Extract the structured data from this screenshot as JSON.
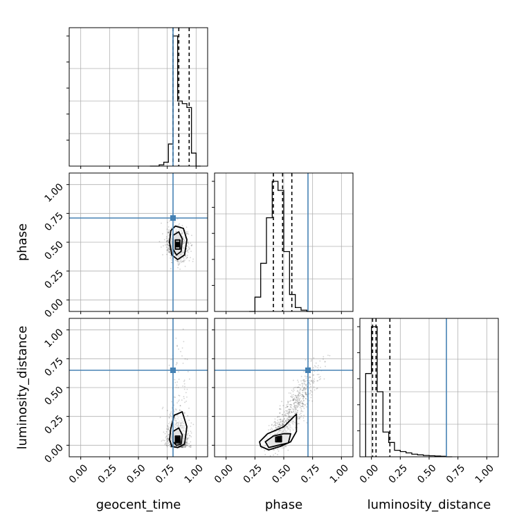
{
  "chart_data": {
    "type": "corner",
    "parameters": [
      "geocent_time",
      "phase",
      "luminosity_distance"
    ],
    "truths": {
      "geocent_time": 0.8,
      "phase": 0.71,
      "luminosity_distance": 0.65
    },
    "axis_range": [
      -0.1,
      1.1
    ],
    "tick_labels": [
      "0.00",
      "0.25",
      "0.50",
      "0.75",
      "1.00"
    ],
    "grid": true,
    "truth_color": "#4682b4",
    "hist_color": "#000000",
    "quantiles": {
      "geocent_time": [
        0.8,
        0.85,
        0.94
      ],
      "phase": [
        0.41,
        0.49,
        0.57
      ],
      "luminosity_distance": [
        0.01,
        0.04,
        0.16
      ]
    },
    "histograms": {
      "geocent_time": {
        "bin_edges": [
          0.6,
          0.64,
          0.68,
          0.72,
          0.76,
          0.8,
          0.84,
          0.88,
          0.92,
          0.96,
          1.0,
          1.04
        ],
        "counts": [
          0.0,
          0.0,
          0.01,
          0.03,
          0.17,
          1.0,
          0.5,
          0.48,
          0.45,
          0.1,
          0.0
        ]
      },
      "phase": {
        "bin_edges": [
          0.2,
          0.25,
          0.3,
          0.35,
          0.4,
          0.45,
          0.5,
          0.55,
          0.6,
          0.65,
          0.7,
          0.75
        ],
        "counts": [
          0.0,
          0.11,
          0.37,
          0.72,
          1.0,
          0.93,
          0.46,
          0.13,
          0.03,
          0.01,
          0.0
        ]
      },
      "luminosity_distance": {
        "bin_edges": [
          -0.05,
          0.0,
          0.05,
          0.1,
          0.15,
          0.2,
          0.25,
          0.3,
          0.35,
          0.4,
          0.45,
          0.5,
          0.55,
          0.6,
          0.65,
          0.7
        ],
        "counts": [
          0.64,
          1.0,
          0.5,
          0.19,
          0.11,
          0.05,
          0.04,
          0.03,
          0.02,
          0.015,
          0.01,
          0.008,
          0.006,
          0.004,
          0.0
        ]
      }
    },
    "joint_contours": [
      {
        "x": "geocent_time",
        "y": "phase",
        "peak": [
          0.84,
          0.48
        ],
        "contours": [
          [
            [
              0.78,
              0.6
            ],
            [
              0.82,
              0.64
            ],
            [
              0.89,
              0.62
            ],
            [
              0.92,
              0.52
            ],
            [
              0.9,
              0.39
            ],
            [
              0.84,
              0.35
            ],
            [
              0.79,
              0.39
            ],
            [
              0.77,
              0.5
            ]
          ],
          [
            [
              0.8,
              0.56
            ],
            [
              0.85,
              0.59
            ],
            [
              0.88,
              0.53
            ],
            [
              0.87,
              0.42
            ],
            [
              0.83,
              0.39
            ],
            [
              0.8,
              0.44
            ]
          ],
          [
            [
              0.82,
              0.52
            ],
            [
              0.86,
              0.52
            ],
            [
              0.86,
              0.44
            ],
            [
              0.82,
              0.44
            ]
          ]
        ]
      },
      {
        "x": "geocent_time",
        "y": "luminosity_distance",
        "peak": [
          0.84,
          0.05
        ],
        "contours": [
          [
            [
              0.78,
              0.14
            ],
            [
              0.81,
              0.26
            ],
            [
              0.88,
              0.29
            ],
            [
              0.92,
              0.16
            ],
            [
              0.9,
              0.01
            ],
            [
              0.84,
              -0.02
            ],
            [
              0.79,
              -0.01
            ],
            [
              0.77,
              0.05
            ]
          ],
          [
            [
              0.8,
              0.12
            ],
            [
              0.85,
              0.15
            ],
            [
              0.88,
              0.09
            ],
            [
              0.87,
              0.01
            ],
            [
              0.83,
              0.0
            ],
            [
              0.8,
              0.03
            ]
          ],
          [
            [
              0.82,
              0.08
            ],
            [
              0.86,
              0.08
            ],
            [
              0.86,
              0.02
            ],
            [
              0.82,
              0.02
            ]
          ]
        ]
      },
      {
        "x": "phase",
        "y": "luminosity_distance",
        "peak": [
          0.46,
          0.05
        ],
        "contours": [
          [
            [
              0.29,
              0.03
            ],
            [
              0.36,
              0.1
            ],
            [
              0.5,
              0.16
            ],
            [
              0.6,
              0.26
            ],
            [
              0.61,
              0.27
            ],
            [
              0.61,
              0.12
            ],
            [
              0.56,
              0.03
            ],
            [
              0.47,
              -0.01
            ],
            [
              0.37,
              -0.04
            ],
            [
              0.3,
              -0.01
            ]
          ],
          [
            [
              0.34,
              0.03
            ],
            [
              0.41,
              0.08
            ],
            [
              0.5,
              0.1
            ],
            [
              0.56,
              0.1
            ],
            [
              0.54,
              0.02
            ],
            [
              0.45,
              0.0
            ],
            [
              0.37,
              -0.02
            ]
          ],
          [
            [
              0.43,
              0.07
            ],
            [
              0.48,
              0.08
            ],
            [
              0.48,
              0.03
            ],
            [
              0.43,
              0.03
            ]
          ]
        ]
      }
    ]
  }
}
